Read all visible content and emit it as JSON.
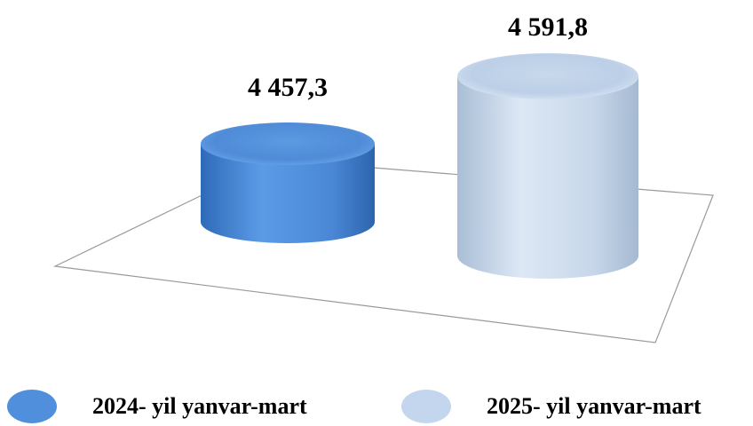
{
  "chart_data": {
    "type": "bar",
    "style": "3d-cylinder",
    "categories": [
      "2024- yil yanvar-mart",
      "2025- yil yanvar-mart"
    ],
    "values": [
      4457.3,
      4591.8
    ],
    "data_labels": [
      "4 457,3",
      "4 591,8"
    ],
    "colors": [
      "#4f8fdc",
      "#c3d6ee"
    ],
    "title": "",
    "xlabel": "",
    "ylabel": "",
    "grid": false,
    "legend": "bottom"
  }
}
